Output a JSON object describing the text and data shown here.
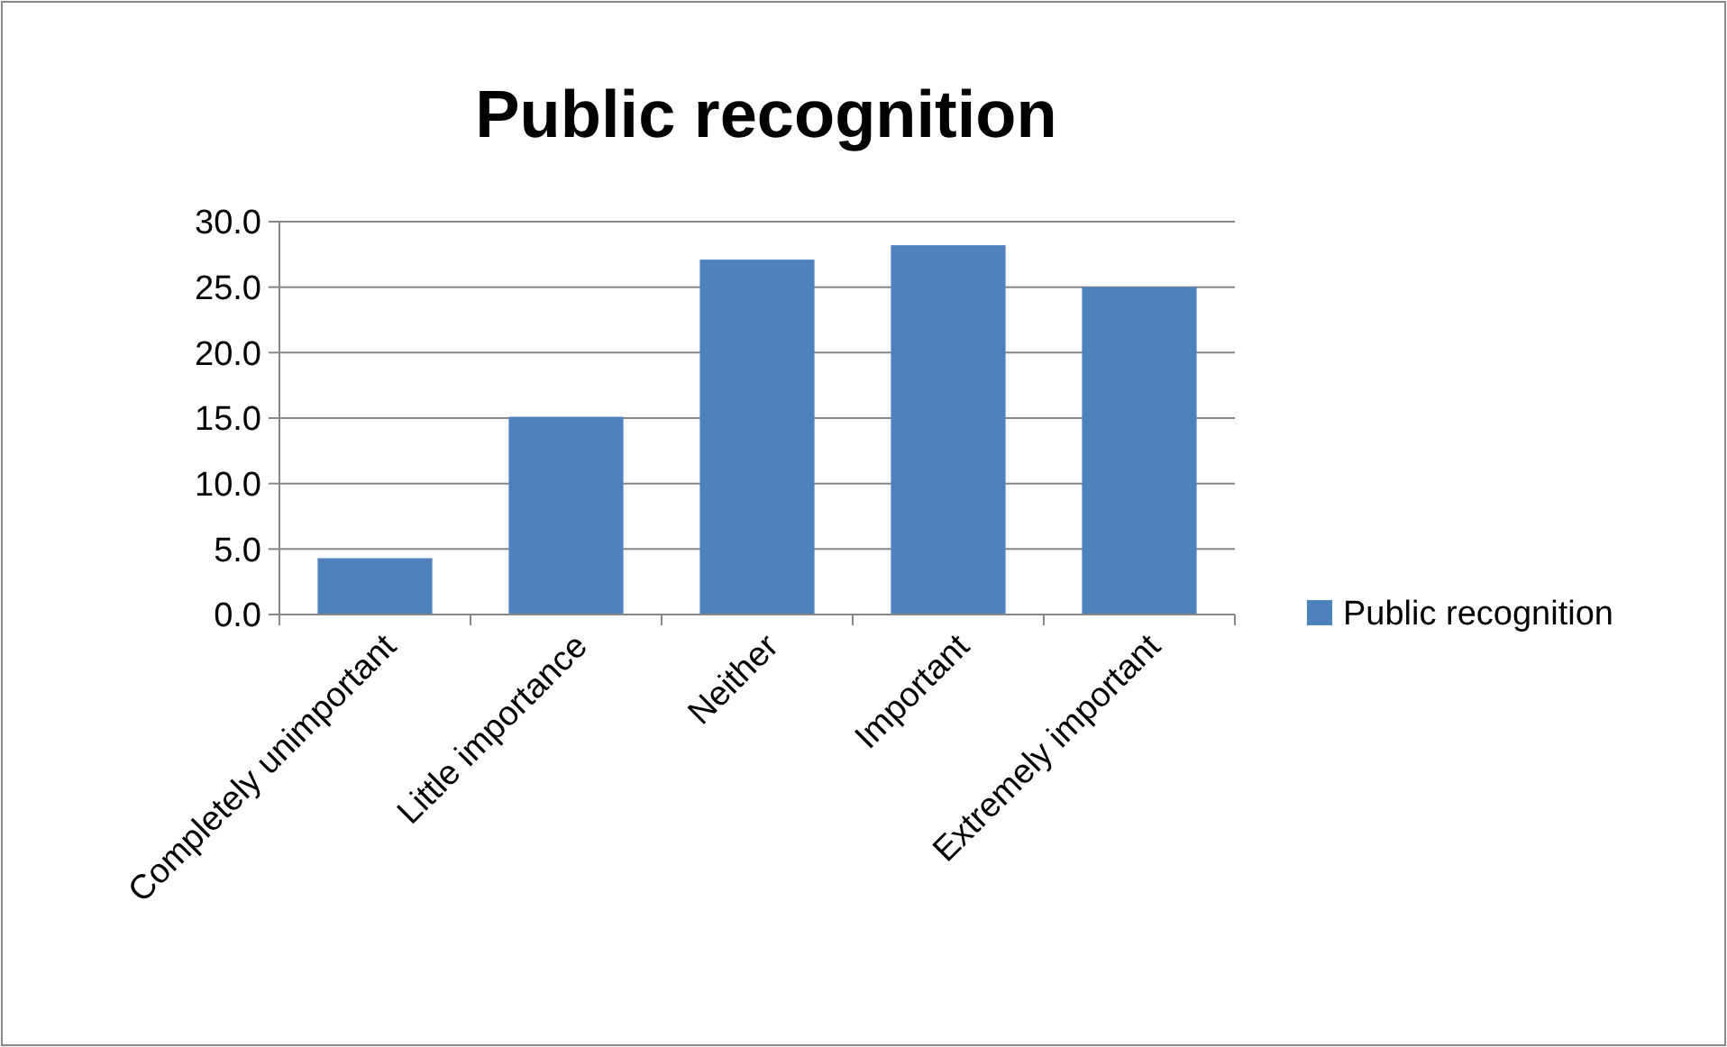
{
  "chart_data": {
    "type": "bar",
    "title": "Public recognition",
    "categories": [
      "Completely unimportant",
      "Little importance",
      "Neither",
      "Important",
      "Extremely important"
    ],
    "series": [
      {
        "name": "Public recognition",
        "color": "#4f81bd",
        "values": [
          4.3,
          15.1,
          27.1,
          28.2,
          25.0
        ]
      }
    ],
    "ylim": [
      0,
      30
    ],
    "yticks": [
      {
        "value": 0,
        "label": "0.0"
      },
      {
        "value": 5,
        "label": "5.0"
      },
      {
        "value": 10,
        "label": "10.0"
      },
      {
        "value": 15,
        "label": "15.0"
      },
      {
        "value": 20,
        "label": "20.0"
      },
      {
        "value": 25,
        "label": "25.0"
      },
      {
        "value": 30,
        "label": "30.0"
      }
    ],
    "grid": "y",
    "legend": "right"
  }
}
